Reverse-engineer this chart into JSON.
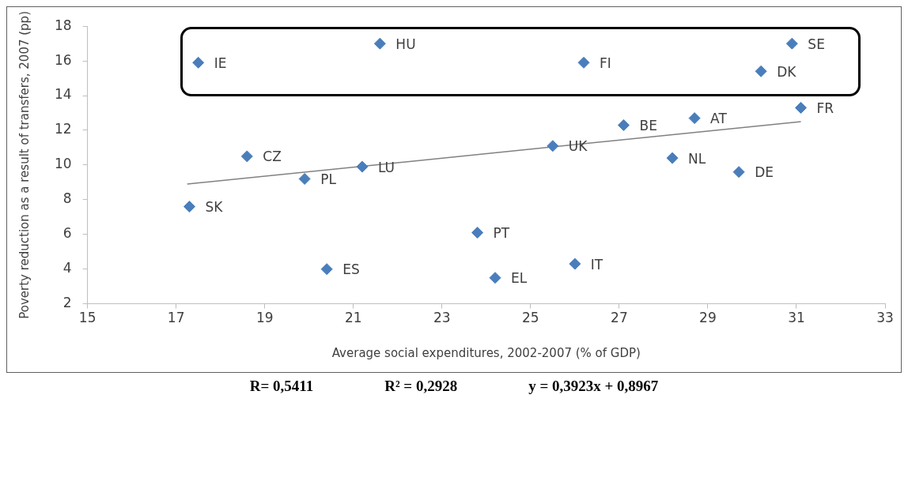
{
  "chart_data": {
    "type": "scatter",
    "xlabel": "Average social expenditures, 2002-2007 (% of GDP)",
    "ylabel": "Poverty reduction as a result of transfers, 2007 (pp)",
    "xlim": [
      15,
      33
    ],
    "xticks": [
      15,
      17,
      19,
      21,
      23,
      25,
      27,
      29,
      31,
      33
    ],
    "ylim": [
      2,
      18
    ],
    "yticks": [
      2,
      4,
      6,
      8,
      10,
      12,
      14,
      16,
      18
    ],
    "grid": false,
    "legend": false,
    "marker": "diamond",
    "series": [
      {
        "color": "#4a7ebb",
        "x": [
          17.5,
          21.6,
          18.6,
          21.2,
          19.9,
          17.3,
          20.4,
          23.8,
          26.2,
          30.9,
          30.2,
          31.1,
          27.1,
          28.7,
          25.5,
          28.2,
          29.7,
          26.0,
          24.2
        ],
        "values": [
          15.9,
          17.0,
          10.5,
          9.9,
          9.2,
          7.6,
          4.0,
          6.1,
          15.9,
          17.0,
          15.4,
          13.3,
          12.3,
          12.7,
          11.1,
          10.4,
          9.6,
          4.3,
          3.5
        ]
      },
      {
        "type": "line",
        "color": "#808080",
        "marker": "none",
        "x": [
          17.25,
          31.1
        ],
        "values": [
          8.9,
          12.5
        ]
      }
    ],
    "annotations": [
      {
        "text": "IE",
        "x": 17.5,
        "y": 15.9
      },
      {
        "text": "HU",
        "x": 21.6,
        "y": 17.0
      },
      {
        "text": "CZ",
        "x": 18.6,
        "y": 10.5
      },
      {
        "text": "LU",
        "x": 21.2,
        "y": 9.9
      },
      {
        "text": "PL",
        "x": 19.9,
        "y": 9.2
      },
      {
        "text": "SK",
        "x": 17.3,
        "y": 7.6
      },
      {
        "text": "ES",
        "x": 20.4,
        "y": 4.0
      },
      {
        "text": "PT",
        "x": 23.8,
        "y": 6.1
      },
      {
        "text": "FI",
        "x": 26.2,
        "y": 15.9
      },
      {
        "text": "SE",
        "x": 30.9,
        "y": 17.0
      },
      {
        "text": "DK",
        "x": 30.2,
        "y": 15.4
      },
      {
        "text": "FR",
        "x": 31.1,
        "y": 13.3
      },
      {
        "text": "BE",
        "x": 27.1,
        "y": 12.3
      },
      {
        "text": "AT",
        "x": 28.7,
        "y": 12.7
      },
      {
        "text": "UK",
        "x": 25.5,
        "y": 11.1
      },
      {
        "text": "NL",
        "x": 28.2,
        "y": 10.4
      },
      {
        "text": "DE",
        "x": 29.7,
        "y": 9.6
      },
      {
        "text": "IT",
        "x": 26.0,
        "y": 4.3
      },
      {
        "text": "EL",
        "x": 24.2,
        "y": 3.5
      },
      "R= 0,5411",
      "R² = 0,2928",
      "y = 0,3923x + 0,8967"
    ]
  }
}
